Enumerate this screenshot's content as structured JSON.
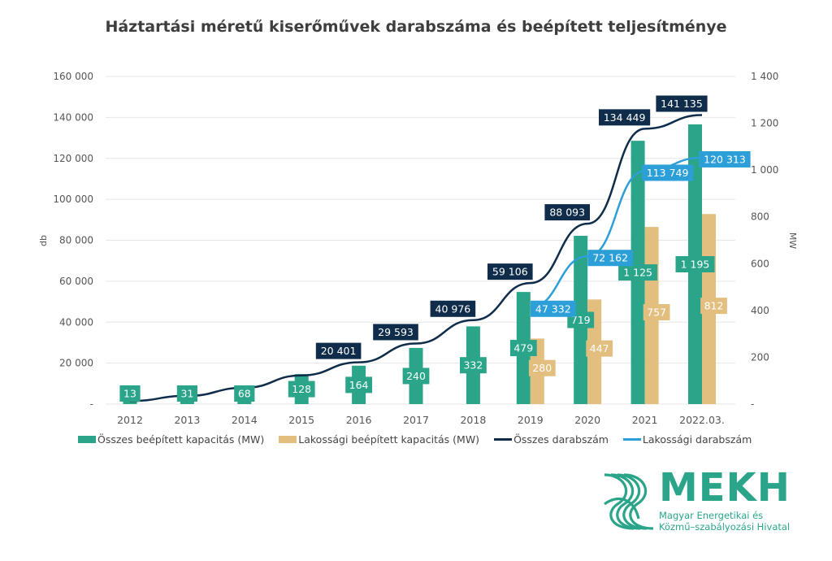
{
  "chart_data": {
    "type": "bar",
    "title": "Háztartási méretű kiserőművek darabszáma és beépített teljesítménye",
    "categories": [
      "2012",
      "2013",
      "2014",
      "2015",
      "2016",
      "2017",
      "2018",
      "2019",
      "2020",
      "2021",
      "2022.03."
    ],
    "y_left": {
      "label": "db",
      "range": [
        0,
        160000
      ],
      "ticks": [
        "-",
        "20 000",
        "40 000",
        "60 000",
        "80 000",
        "100 000",
        "120 000",
        "140 000",
        "160 000"
      ],
      "tick_values": [
        0,
        20000,
        40000,
        60000,
        80000,
        100000,
        120000,
        140000,
        160000
      ]
    },
    "y_right": {
      "label": "MW",
      "range": [
        0,
        1400
      ],
      "ticks": [
        "-",
        "200",
        "400",
        "600",
        "800",
        "1 000",
        "1 200",
        "1 400"
      ],
      "tick_values": [
        0,
        200,
        400,
        600,
        800,
        1000,
        1200,
        1400
      ]
    },
    "grid": true,
    "legend_position": "bottom",
    "series": [
      {
        "name": "Összes beépített kapacitás (MW)",
        "type": "bar",
        "axis": "right",
        "color": "#2aa58a",
        "values": [
          13,
          31,
          68,
          128,
          164,
          240,
          332,
          479,
          719,
          1125,
          1195
        ],
        "labels": [
          "13",
          "31",
          "68",
          "128",
          "164",
          "240",
          "332",
          "479",
          "719",
          "1 125",
          "1 195"
        ]
      },
      {
        "name": "Lakossági beépített kapacitás (MW)",
        "type": "bar",
        "axis": "right",
        "color": "#e3bf7f",
        "values": [
          null,
          null,
          null,
          null,
          null,
          null,
          null,
          280,
          447,
          757,
          812
        ],
        "labels": [
          "",
          "",
          "",
          "",
          "",
          "",
          "",
          "280",
          "447",
          "757",
          "812"
        ]
      },
      {
        "name": "Összes darabszám",
        "type": "line",
        "axis": "left",
        "color": "#0f2d4a",
        "values": [
          1500,
          4000,
          8000,
          14000,
          20401,
          29593,
          40976,
          59106,
          88093,
          134449,
          141135
        ],
        "labels": [
          "",
          "",
          "",
          "",
          "20 401",
          "29 593",
          "40 976",
          "59 106",
          "88 093",
          "134 449",
          "141 135"
        ]
      },
      {
        "name": "Lakossági darabszám",
        "type": "line",
        "axis": "left",
        "color": "#2d9fd8",
        "values": [
          null,
          null,
          null,
          null,
          null,
          null,
          null,
          47332,
          72162,
          113749,
          120313
        ],
        "labels": [
          "",
          "",
          "",
          "",
          "",
          "",
          "",
          "47 332",
          "72 162",
          "113 749",
          "120 313"
        ]
      }
    ]
  },
  "legend": {
    "items": [
      {
        "label": "Összes beépített kapacitás (MW)",
        "kind": "bar",
        "color": "#2aa58a"
      },
      {
        "label": "Lakossági beépített kapacitás (MW)",
        "kind": "bar",
        "color": "#e3bf7f"
      },
      {
        "label": "Összes darabszám",
        "kind": "line",
        "color": "#0f2d4a"
      },
      {
        "label": "Lakossági darabszám",
        "kind": "line",
        "color": "#2d9fd8"
      }
    ]
  },
  "logo": {
    "name": "MEKH",
    "line1": "Magyar Energetikai és",
    "line2": "Közmű–szabályozási Hivatal",
    "color": "#2aa58a"
  }
}
